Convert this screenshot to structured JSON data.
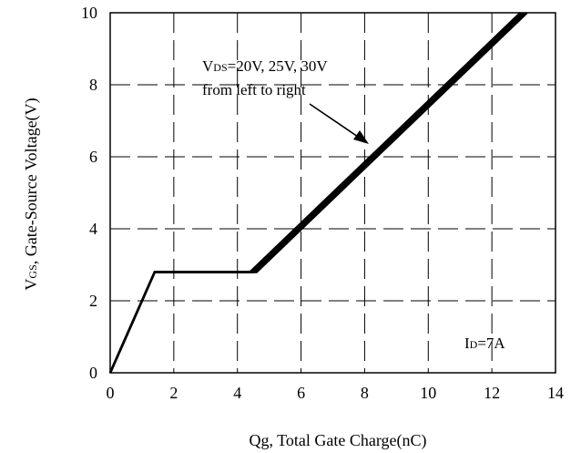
{
  "chart_data": {
    "type": "line",
    "xlabel": "Qg, Total Gate Charge(nC)",
    "ylabel": {
      "prefix": "V",
      "sub": "GS",
      "rest": ", Gate-Source Voltage(V)"
    },
    "xlim": [
      0,
      14
    ],
    "ylim": [
      0,
      10
    ],
    "xticks": [
      0,
      2,
      4,
      6,
      8,
      10,
      12,
      14
    ],
    "yticks": [
      0,
      2,
      4,
      6,
      8,
      10
    ],
    "grid": "dashed",
    "series": [
      {
        "x": [
          0,
          1.4,
          4.4,
          12.9
        ],
        "y": [
          0,
          2.8,
          2.8,
          10
        ]
      },
      {
        "x": [
          0,
          1.4,
          4.5,
          13.0
        ],
        "y": [
          0,
          2.8,
          2.8,
          10
        ]
      },
      {
        "x": [
          0,
          1.4,
          4.6,
          13.1
        ],
        "y": [
          0,
          2.8,
          2.8,
          10
        ]
      }
    ],
    "annotations": {
      "vds_prefix": "V",
      "vds_sub": "DS",
      "vds_rest": "=20V, 25V, 30V",
      "line2": "from left to right",
      "id_prefix": "I",
      "id_sub": "D",
      "id_rest": "=7A"
    }
  }
}
